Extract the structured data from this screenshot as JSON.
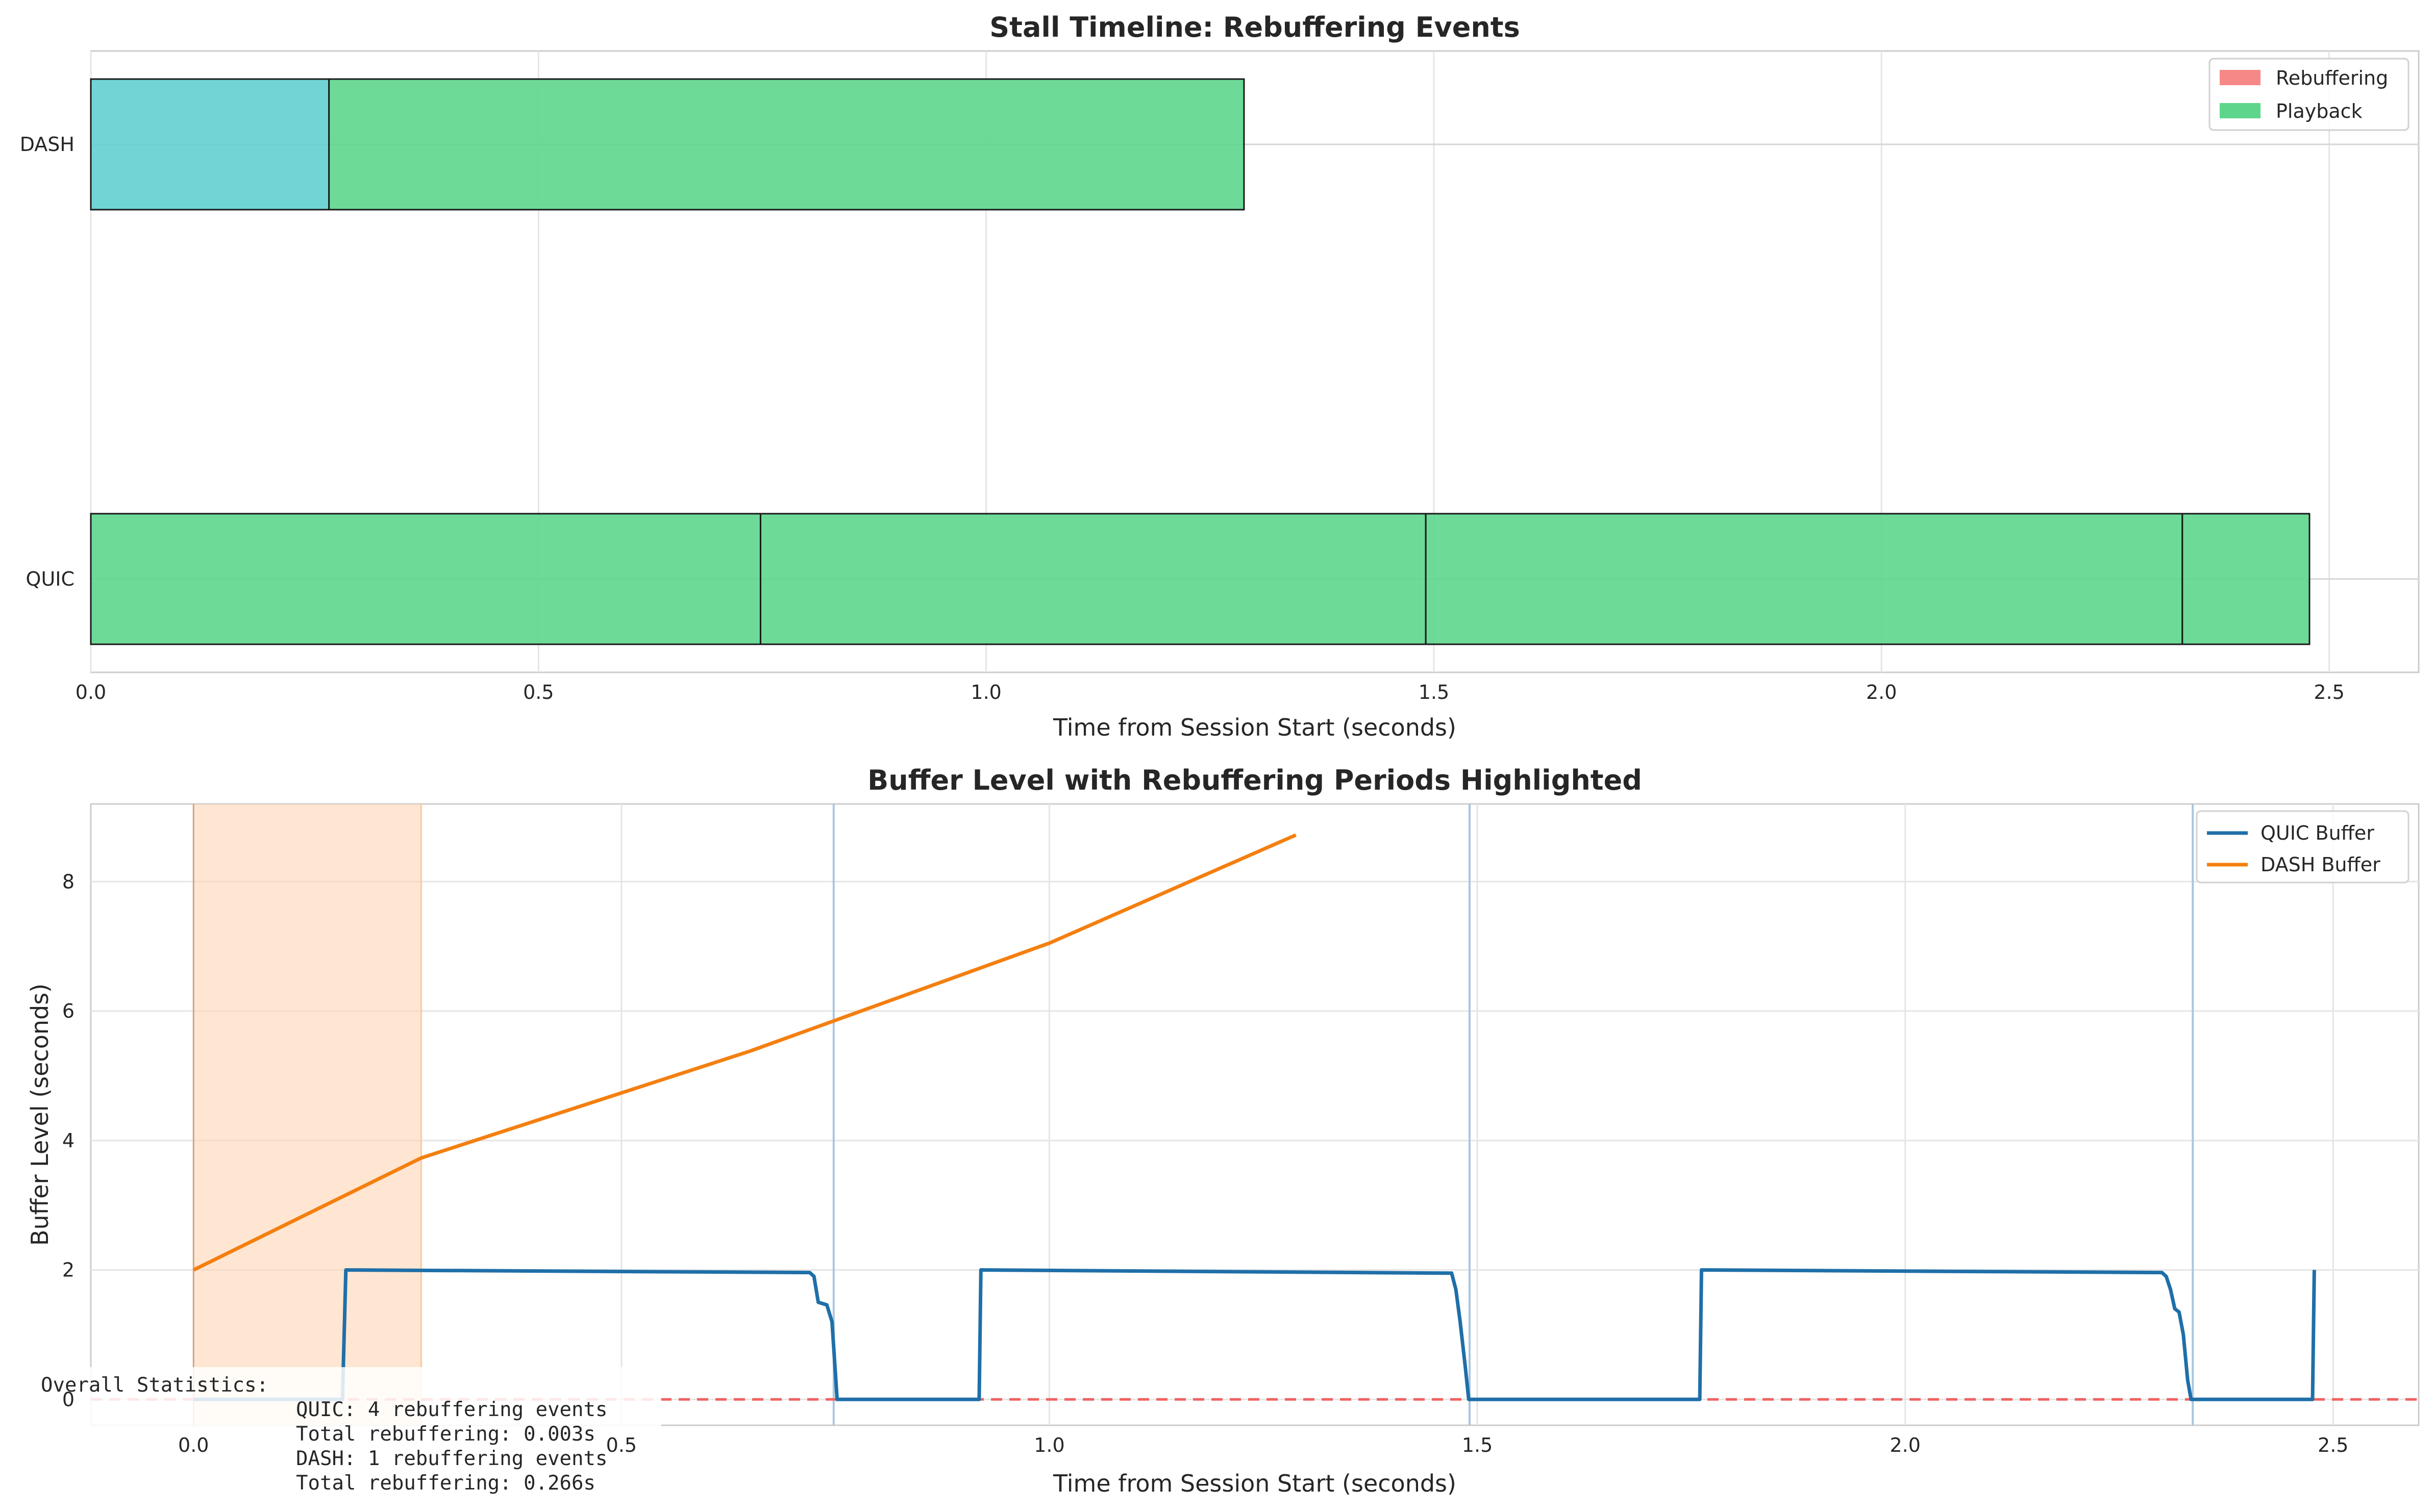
{
  "chart_data": [
    {
      "type": "bar",
      "orientation": "horizontal",
      "title": "Stall Timeline: Rebuffering Events",
      "xlabel": "Time from Session Start (seconds)",
      "ylabel": "",
      "xlim": [
        0,
        2.6
      ],
      "xticks": [
        "0.0",
        "0.5",
        "1.0",
        "1.5",
        "2.0",
        "2.5"
      ],
      "categories": [
        "DASH",
        "QUIC"
      ],
      "grid": true,
      "legend": {
        "position": "top-right",
        "entries": [
          {
            "label": "Rebuffering",
            "color": "#f78888"
          },
          {
            "label": "Playback",
            "color": "#5dd68c"
          }
        ]
      },
      "segments": [
        {
          "category": "DASH",
          "kind": "stall",
          "start": 0.0,
          "end": 0.266,
          "color": "#62cfd0"
        },
        {
          "category": "DASH",
          "kind": "playback",
          "start": 0.266,
          "end": 1.288,
          "color": "#5dd68c"
        },
        {
          "category": "QUIC",
          "kind": "playback",
          "start": 0.0,
          "end": 0.748,
          "color": "#5dd68c"
        },
        {
          "category": "QUIC",
          "kind": "playback",
          "start": 0.748,
          "end": 1.491,
          "color": "#5dd68c"
        },
        {
          "category": "QUIC",
          "kind": "playback",
          "start": 1.491,
          "end": 2.336,
          "color": "#5dd68c"
        },
        {
          "category": "QUIC",
          "kind": "playback",
          "start": 2.336,
          "end": 2.478,
          "color": "#5dd68c"
        }
      ]
    },
    {
      "type": "line",
      "title": "Buffer Level with Rebuffering Periods Highlighted",
      "xlabel": "Time from Session Start (seconds)",
      "ylabel": "Buffer Level (seconds)",
      "xlim": [
        -0.12,
        2.6
      ],
      "ylim": [
        -0.4,
        9.2
      ],
      "xticks": [
        "0.0",
        "0.5",
        "1.0",
        "1.5",
        "2.0",
        "2.5"
      ],
      "yticks": [
        "0",
        "2",
        "4",
        "6",
        "8"
      ],
      "grid": true,
      "legend": {
        "position": "top-right"
      },
      "series": [
        {
          "name": "QUIC Buffer",
          "color": "#1f6fa8",
          "points": [
            [
              0.0,
              0.0
            ],
            [
              0.174,
              0.0
            ],
            [
              0.178,
              2.0
            ],
            [
              0.72,
              1.96
            ],
            [
              0.725,
              1.9
            ],
            [
              0.73,
              1.5
            ],
            [
              0.74,
              1.46
            ],
            [
              0.746,
              1.2
            ],
            [
              0.75,
              0.4
            ],
            [
              0.752,
              0.0
            ],
            [
              0.918,
              0.0
            ],
            [
              0.92,
              2.0
            ],
            [
              1.47,
              1.95
            ],
            [
              1.475,
              1.7
            ],
            [
              1.48,
              1.2
            ],
            [
              1.486,
              0.5
            ],
            [
              1.49,
              0.0
            ],
            [
              1.76,
              0.0
            ],
            [
              1.762,
              2.0
            ],
            [
              2.3,
              1.96
            ],
            [
              2.305,
              1.9
            ],
            [
              2.31,
              1.7
            ],
            [
              2.315,
              1.4
            ],
            [
              2.32,
              1.35
            ],
            [
              2.325,
              1.0
            ],
            [
              2.33,
              0.3
            ],
            [
              2.334,
              0.0
            ],
            [
              2.476,
              0.0
            ],
            [
              2.478,
              2.0
            ]
          ]
        },
        {
          "name": "DASH Buffer",
          "color": "#f47f0f",
          "points": [
            [
              0.0,
              2.0
            ],
            [
              0.266,
              3.73
            ],
            [
              0.65,
              5.38
            ],
            [
              1.0,
              7.05
            ],
            [
              1.288,
              8.72
            ]
          ]
        }
      ],
      "highlights": [
        {
          "start": 0.0,
          "end": 0.266,
          "color": "#ffd6b4"
        }
      ],
      "vlines": [
        0.748,
        1.491,
        2.336
      ],
      "hline": {
        "y": 0,
        "color": "#f06262",
        "style": "dashed"
      }
    }
  ],
  "stats": {
    "heading": "Overall Statistics:",
    "lines": [
      "QUIC: 4 rebuffering events",
      "Total rebuffering: 0.003s",
      "DASH: 1 rebuffering events",
      "Total rebuffering: 0.266s"
    ]
  }
}
